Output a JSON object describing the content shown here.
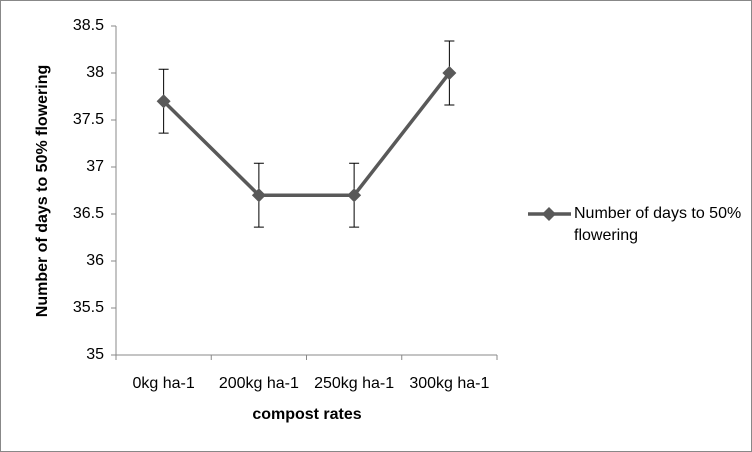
{
  "chart_data": {
    "type": "line",
    "x_label": "compost rates",
    "y_label": "Number of days to 50% flowering",
    "categories": [
      "0kg ha-1",
      "200kg ha-1",
      "250kg ha-1",
      "300kg ha-1"
    ],
    "series": [
      {
        "name": "Number of days to 50% flowering",
        "color": "#595959",
        "values": [
          37.7,
          36.7,
          36.7,
          38.0
        ],
        "errors": [
          0.34,
          0.34,
          0.34,
          0.34
        ]
      }
    ],
    "ylim": [
      35,
      38.5
    ],
    "yticks": [
      35,
      35.5,
      36,
      36.5,
      37,
      37.5,
      38,
      38.5
    ],
    "grid": false,
    "legend": "right"
  }
}
